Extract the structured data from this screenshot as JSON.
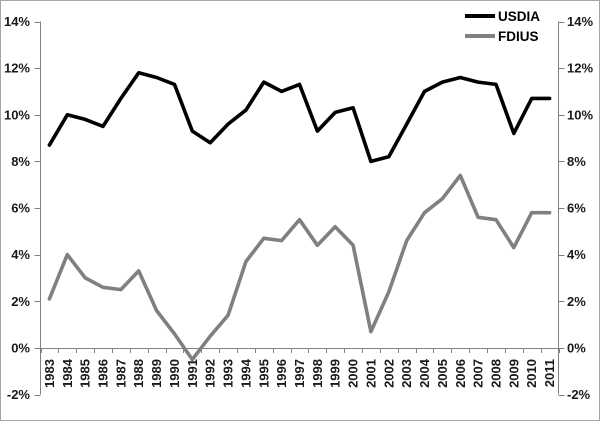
{
  "window": {
    "background": "#ffffff",
    "border_color": "#a6a6a6"
  },
  "chart_data": {
    "type": "line",
    "title": "",
    "xlabel": "",
    "ylabel": "",
    "categories": [
      "1983",
      "1984",
      "1985",
      "1986",
      "1987",
      "1988",
      "1989",
      "1990",
      "1991",
      "1992",
      "1993",
      "1994",
      "1995",
      "1996",
      "1997",
      "1998",
      "1999",
      "2000",
      "2001",
      "2002",
      "2003",
      "2004",
      "2005",
      "2006",
      "2007",
      "2008",
      "2009",
      "2010",
      "2011"
    ],
    "series": [
      {
        "name": "USDIA",
        "color": "#000000",
        "values": [
          8.7,
          10.0,
          9.8,
          9.5,
          10.7,
          11.8,
          11.6,
          11.3,
          9.3,
          8.8,
          9.6,
          10.2,
          11.4,
          11.0,
          11.3,
          9.3,
          10.1,
          10.3,
          8.0,
          8.2,
          9.6,
          11.0,
          11.4,
          11.6,
          11.4,
          11.3,
          9.2,
          10.7,
          10.7
        ]
      },
      {
        "name": "FDIUS",
        "color": "#808080",
        "values": [
          2.1,
          4.0,
          3.0,
          2.6,
          2.5,
          3.3,
          1.6,
          0.6,
          -0.5,
          0.5,
          1.4,
          3.7,
          4.7,
          4.6,
          5.5,
          4.4,
          5.2,
          4.4,
          0.7,
          2.4,
          4.6,
          5.8,
          6.4,
          7.4,
          5.6,
          5.5,
          4.3,
          5.8,
          5.8
        ]
      }
    ],
    "ylim": [
      -2,
      14
    ],
    "ytick_step": 2,
    "ytick_suffix": "%",
    "dual_y_axis": true,
    "grid": false,
    "legend_position": "top-right",
    "axis_color": "#808080",
    "label_color": "#1a1a1a"
  }
}
